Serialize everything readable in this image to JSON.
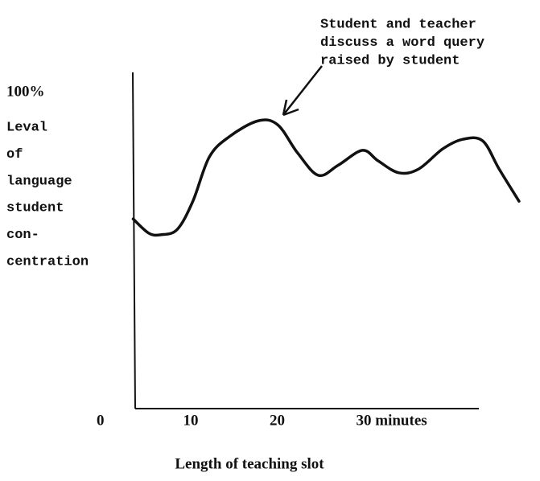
{
  "chart_data": {
    "type": "line",
    "title_lines": [
      "Student and teacher",
      "discuss a word query",
      "raised by student"
    ],
    "y_label_lines": [
      "Leval",
      "of",
      "language",
      "student",
      "con-",
      "centration"
    ],
    "x_label": "Length of teaching slot",
    "x": [
      3.3,
      5.1,
      6.5,
      8.4,
      10.2,
      12.1,
      14.4,
      17.7,
      20,
      22.3,
      24.7,
      27,
      29.8,
      31.6,
      34,
      36.3,
      39.1,
      41.4,
      43.7,
      45.6,
      47.9
    ],
    "series": [
      {
        "color": "#111111",
        "values": [
          60,
          55.5,
          55,
          56.7,
          65.6,
          79.6,
          86,
          91,
          89.8,
          80.9,
          73.8,
          77,
          81.7,
          78.4,
          74.6,
          75.8,
          82.2,
          85.2,
          84.7,
          75.8,
          65.6
        ]
      }
    ],
    "xlim": [
      0,
      48
    ],
    "ylim": [
      0,
      100
    ],
    "xticks": [
      0,
      10,
      20,
      {
        "value": 30,
        "label": "30 minutes"
      }
    ],
    "yticks": [
      {
        "value": 100,
        "label": "100%"
      }
    ]
  }
}
